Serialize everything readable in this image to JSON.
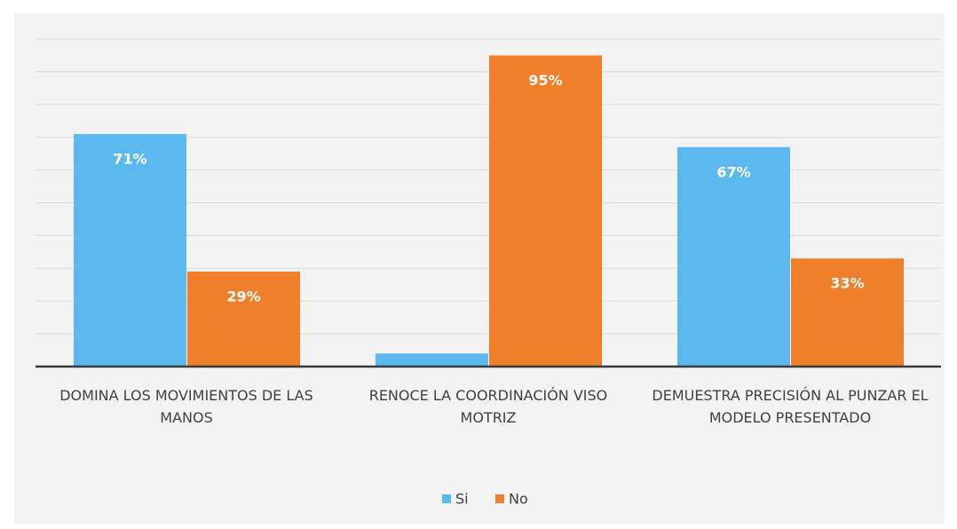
{
  "chart_data": {
    "type": "bar",
    "categories": [
      "DOMINA LOS MOVIMIENTOS DE LAS MANOS",
      "RENOCE LA COORDINACIÓN VISO MOTRIZ",
      "DEMUESTRA PRECISIÓN AL PUNZAR EL MODELO PRESENTADO"
    ],
    "series": [
      {
        "name": "Si",
        "color": "#5cb9ef",
        "values": [
          71,
          4,
          67
        ],
        "value_labels": [
          "71%",
          null,
          "67%"
        ]
      },
      {
        "name": "No",
        "color": "#f07f2b",
        "values": [
          29,
          95,
          33
        ],
        "value_labels": [
          "29%",
          "95%",
          "33%"
        ]
      }
    ],
    "ylim": [
      0,
      100
    ],
    "yticks": [
      0,
      10,
      20,
      30,
      40,
      50,
      60,
      70,
      80,
      90,
      100
    ],
    "grid": true,
    "legend": "bottom"
  }
}
